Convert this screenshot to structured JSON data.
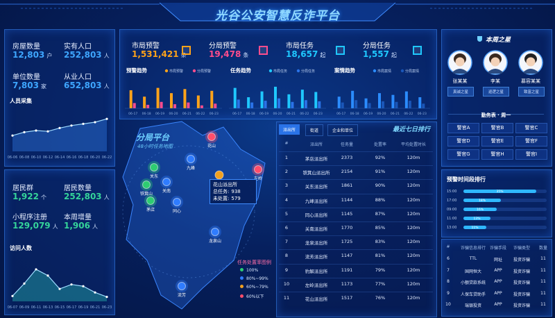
{
  "header": {
    "title": "光谷公安智慧反诈平台"
  },
  "population": {
    "color": "#3ea6ff",
    "stats": [
      {
        "label": "房屋数量",
        "value": "12,803",
        "unit": "户"
      },
      {
        "label": "实有人口",
        "value": "252,803",
        "unit": "人"
      },
      {
        "label": "单位数量",
        "value": "7,803",
        "unit": "家"
      },
      {
        "label": "从业人口",
        "value": "652,803",
        "unit": "人"
      }
    ],
    "chart": {
      "type": "area",
      "title": "人员采集",
      "color": "#3a8cff",
      "ylim": [
        0,
        100
      ],
      "categories": [
        "06-06",
        "06-08",
        "06-10",
        "06-12",
        "06-14",
        "06-16",
        "06-18",
        "06-20",
        "06-22"
      ],
      "values": [
        38,
        46,
        50,
        48,
        56,
        62,
        66,
        70,
        78
      ]
    }
  },
  "residents": {
    "color": "#35d49a",
    "stats": [
      {
        "label": "居民群",
        "value": "1,922",
        "unit": "个"
      },
      {
        "label": "居民数量",
        "value": "252,803",
        "unit": "人"
      },
      {
        "label": "小程序注册",
        "value": "129,079",
        "unit": "人"
      },
      {
        "label": "本周增量",
        "value": "1,906",
        "unit": "人"
      }
    ],
    "chart": {
      "type": "area",
      "title": "访问人数",
      "color": "#2fd3c2",
      "ylim": [
        0,
        100
      ],
      "categories": [
        "06-07",
        "06-09",
        "06-11",
        "06-13",
        "06-15",
        "06-17",
        "06-19",
        "06-21",
        "06-23"
      ],
      "values": [
        12,
        40,
        72,
        58,
        28,
        38,
        34,
        20,
        10
      ]
    }
  },
  "alerts": {
    "stats": [
      {
        "label": "市局预警",
        "value": "1,531,421",
        "unit": "条",
        "color": "#ffa31a"
      },
      {
        "label": "分局预警",
        "value": "19,478",
        "unit": "条",
        "color": "#ff4d8d"
      },
      {
        "label": "市局任务",
        "value": "18,657",
        "unit": "起",
        "color": "#1fc8ff"
      },
      {
        "label": "分局任务",
        "value": "1,557",
        "unit": "起",
        "color": "#1fc8ff"
      }
    ],
    "charts": [
      {
        "type": "bar",
        "title": "预警趋势",
        "ylim": [
          0,
          100
        ],
        "categories": [
          "06-17",
          "06-18",
          "06-19",
          "06-20",
          "06-21",
          "06-22",
          "06-23"
        ],
        "series": [
          {
            "name": "市局预警",
            "color": "#ffa31a",
            "values": [
              62,
              40,
              70,
              52,
              66,
              44,
              60
            ]
          },
          {
            "name": "分局预警",
            "color": "#ff4d8d",
            "values": [
              18,
              12,
              22,
              14,
              20,
              10,
              16
            ]
          }
        ]
      },
      {
        "type": "bar",
        "title": "任务趋势",
        "ylim": [
          0,
          100
        ],
        "categories": [
          "06-17",
          "06-18",
          "06-19",
          "06-20",
          "06-21",
          "06-22",
          "06-23"
        ],
        "series": [
          {
            "name": "市局任务",
            "color": "#1fc8ff",
            "values": [
              70,
              38,
              58,
              74,
              48,
              64,
              56
            ]
          },
          {
            "name": "分局任务",
            "color": "#2a73e8",
            "values": [
              30,
              20,
              26,
              34,
              22,
              28,
              24
            ]
          }
        ]
      },
      {
        "type": "bar",
        "title": "案情趋势",
        "ylim": [
          0,
          100
        ],
        "categories": [
          "06-17",
          "06-18",
          "06-19",
          "06-20",
          "06-21",
          "06-22",
          "06-23"
        ],
        "series": [
          {
            "name": "市局案情",
            "color": "#2b8cff",
            "values": [
              40,
              60,
              34,
              52,
              46,
              58,
              38
            ]
          },
          {
            "name": "分局案情",
            "color": "#1a56b8",
            "values": [
              20,
              28,
              18,
              24,
              22,
              26,
              16
            ]
          }
        ]
      }
    ]
  },
  "map": {
    "title": "分局平台",
    "subtitle": "48小时任务地图",
    "nodes": [
      {
        "label": "花山",
        "color": "#ff4d6a"
      },
      {
        "label": "九峰",
        "color": "#2f7cff"
      },
      {
        "label": "关东",
        "color": "#2ecc71"
      },
      {
        "label": "关南",
        "color": "#2f7cff"
      },
      {
        "label": "铁箕山",
        "color": "#2ecc71"
      },
      {
        "label": "茅店",
        "color": "#2ecc71"
      },
      {
        "label": "同心",
        "color": "#2f7cff"
      },
      {
        "label": "龙泉山",
        "color": "#2f7cff"
      },
      {
        "label": "流芳",
        "color": "#2f7cff"
      },
      {
        "label": "左岭",
        "color": "#ff4d6a"
      }
    ],
    "popup": {
      "title": "花山派出所",
      "lines": [
        {
          "label": "总任务:",
          "value": "938"
        },
        {
          "label": "未处置:",
          "value": "579"
        }
      ]
    },
    "legend": {
      "title": "任务处置率图例",
      "items": [
        {
          "label": "100%",
          "color": "#2ecc71"
        },
        {
          "label": "80%~99%",
          "color": "#2f7cff"
        },
        {
          "label": "60%~79%",
          "color": "#f0a020"
        },
        {
          "label": "60%以下",
          "color": "#ff4d6a"
        }
      ]
    }
  },
  "ranking": {
    "tabs": [
      "派出所",
      "街道",
      "企业和单位"
    ],
    "title": "最近七日排行",
    "columns": [
      "#",
      "派出所",
      "任务量",
      "处置率",
      "平均处置时长"
    ],
    "rows": [
      [
        "1",
        "茅店派出所",
        "2373",
        "92%",
        "120m"
      ],
      [
        "2",
        "铁箕山派出所",
        "2154",
        "91%",
        "120m"
      ],
      [
        "3",
        "关东派出所",
        "1861",
        "90%",
        "120m"
      ],
      [
        "4",
        "九峰派出所",
        "1144",
        "88%",
        "120m"
      ],
      [
        "5",
        "同心派出所",
        "1145",
        "87%",
        "120m"
      ],
      [
        "6",
        "关南派出所",
        "1770",
        "85%",
        "120m"
      ],
      [
        "7",
        "龙泉派出所",
        "1725",
        "83%",
        "120m"
      ],
      [
        "8",
        "流芳派出所",
        "1147",
        "81%",
        "120m"
      ],
      [
        "9",
        "豹解派出所",
        "1191",
        "79%",
        "120m"
      ],
      [
        "10",
        "左岭派出所",
        "1173",
        "77%",
        "120m"
      ],
      [
        "11",
        "花山派出所",
        "1517",
        "76%",
        "120m"
      ]
    ]
  },
  "stars": {
    "title": "本周之星",
    "people": [
      {
        "name": "张某某",
        "badge": "真诚之星"
      },
      {
        "name": "李某",
        "badge": "巡逻之星"
      },
      {
        "name": "慕容某某",
        "badge": "致富之星"
      }
    ],
    "duty_title": "勤务表 · 周一",
    "duty": [
      "警官A",
      "警官B",
      "警官C",
      "警官D",
      "警官E",
      "警官F",
      "警官G",
      "警官H",
      "警官I"
    ]
  },
  "time_ranking": {
    "title": "预警时间段排行",
    "xlim": [
      0,
      40
    ],
    "categories": [
      "15:00",
      "17:00",
      "09:00",
      "11:00",
      "13:00"
    ],
    "values": [
      35,
      18,
      16,
      13,
      11
    ],
    "value_labels": [
      "35%",
      "18%",
      "16%",
      "13%",
      "11%"
    ],
    "color": "#2fb8ff"
  },
  "fraud_ranking": {
    "columns": [
      "#",
      "诈骗信息排行",
      "诈骗手段",
      "诈骗类型",
      "数量"
    ],
    "rows": [
      [
        "6",
        "TTL",
        "网址",
        "投资诈骗",
        "11"
      ],
      [
        "7",
        "国网恒大",
        "APP",
        "投资诈骗",
        "11"
      ],
      [
        "8",
        "小额贷款系统",
        "APP",
        "投资诈骗",
        "11"
      ],
      [
        "9",
        "人保车贷助手",
        "APP",
        "投资诈骗",
        "11"
      ],
      [
        "10",
        "瑞银投资",
        "APP",
        "投资诈骗",
        "11"
      ]
    ]
  }
}
